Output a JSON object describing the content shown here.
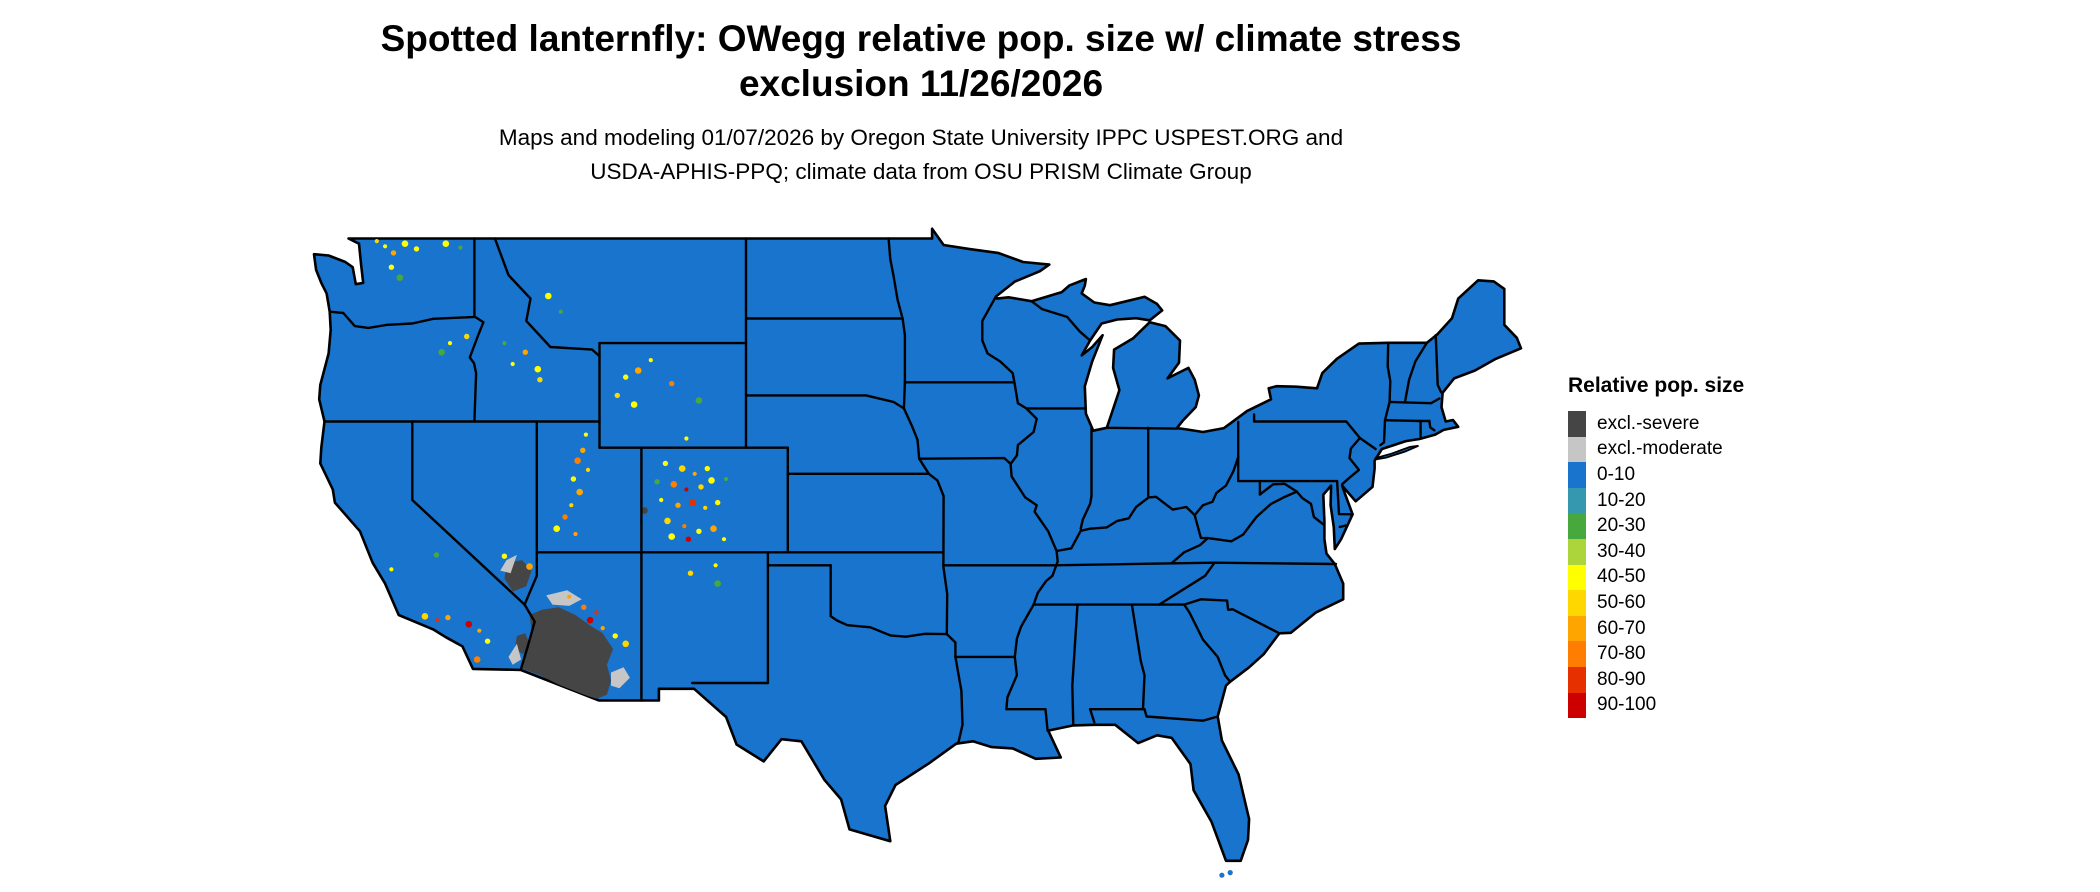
{
  "header": {
    "title_line1": "Spotted lanternfly: OWegg relative pop. size w/ climate stress",
    "title_line2": "exclusion 11/26/2026",
    "subtitle_line1": "Maps and modeling 01/07/2026 by Oregon State University IPPC USPEST.ORG and",
    "subtitle_line2": "USDA-APHIS-PPQ; climate data from OSU PRISM Climate Group"
  },
  "legend": {
    "title": "Relative pop. size",
    "items": [
      {
        "label": "excl.-severe",
        "color": "#454545"
      },
      {
        "label": "excl.-moderate",
        "color": "#c6c6c6"
      },
      {
        "label": "0-10",
        "color": "#1874CD"
      },
      {
        "label": "10-20",
        "color": "#3698ae"
      },
      {
        "label": "20-30",
        "color": "#47a83e"
      },
      {
        "label": "30-40",
        "color": "#abd53a"
      },
      {
        "label": "40-50",
        "color": "#ffff00"
      },
      {
        "label": "50-60",
        "color": "#ffd700"
      },
      {
        "label": "60-70",
        "color": "#ffa500"
      },
      {
        "label": "70-80",
        "color": "#ff7d00"
      },
      {
        "label": "80-90",
        "color": "#e63000"
      },
      {
        "label": "90-100",
        "color": "#cd0000"
      }
    ]
  },
  "map": {
    "region": "Contiguous United States",
    "base_fill_legend_label": "0-10",
    "border_color": "#000000",
    "background_color": "#ffffff"
  }
}
